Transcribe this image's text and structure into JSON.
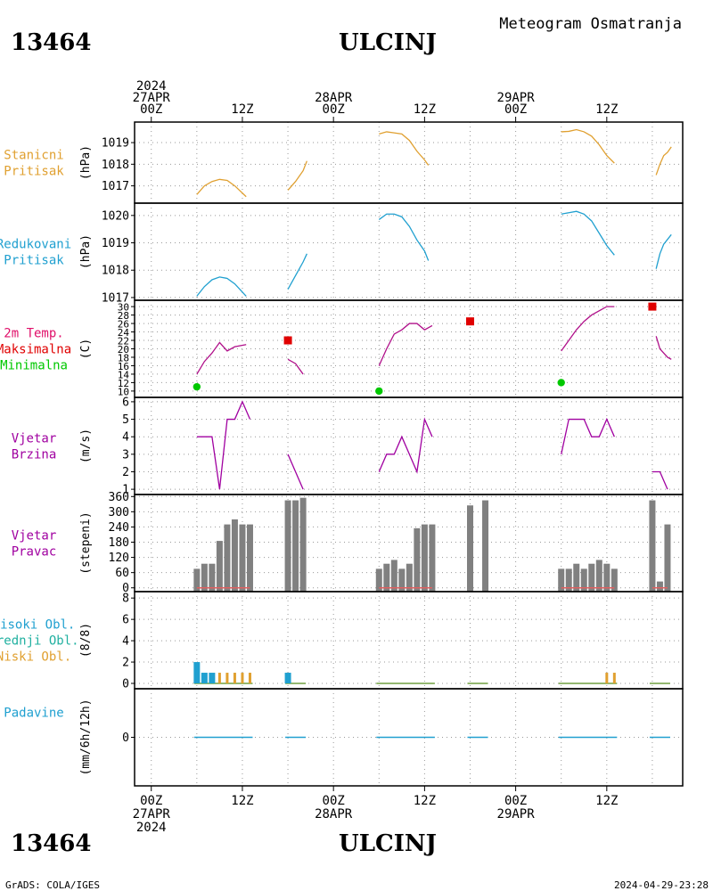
{
  "header": {
    "station_id": "13464",
    "station_name": "ULCINJ",
    "subtitle": "Meteogram Osmatranja"
  },
  "footer": {
    "station_id": "13464",
    "station_name": "ULCINJ",
    "credit": "GrADS: COLA/IGES",
    "timestamp": "2024-04-29-23:28"
  },
  "time_axis": {
    "top": [
      {
        "t": 0,
        "lines": [
          "2024",
          "27APR",
          "00Z"
        ]
      },
      {
        "t": 12,
        "lines": [
          "12Z"
        ]
      },
      {
        "t": 24,
        "lines": [
          "28APR",
          "00Z"
        ]
      },
      {
        "t": 36,
        "lines": [
          "12Z"
        ]
      },
      {
        "t": 48,
        "lines": [
          "29APR",
          "00Z"
        ]
      },
      {
        "t": 60,
        "lines": [
          "12Z"
        ]
      }
    ],
    "bottom": [
      {
        "t": 0,
        "lines": [
          "00Z",
          "27APR",
          "2024"
        ]
      },
      {
        "t": 12,
        "lines": [
          "12Z"
        ]
      },
      {
        "t": 24,
        "lines": [
          "00Z",
          "28APR"
        ]
      },
      {
        "t": 36,
        "lines": [
          "12Z"
        ]
      },
      {
        "t": 48,
        "lines": [
          "00Z",
          "29APR"
        ]
      },
      {
        "t": 60,
        "lines": [
          "12Z"
        ]
      }
    ]
  },
  "colors": {
    "stanicni": "#e0a030",
    "redukovani": "#20a0d0",
    "temp_label": "#e0106a",
    "maks": "#e00000",
    "mini": "#00c800",
    "vjetar": "#a000a0",
    "bars": "#808080",
    "visoki": "#20a0d0",
    "srednji": "#20b0a0",
    "niski": "#e0a030",
    "padavine": "#20a0d0"
  },
  "chart_data": [
    {
      "type": "line",
      "panel": "stanicni",
      "label_lines": [
        "Stanicni",
        "Pritisak"
      ],
      "unit": "(hPa)",
      "yticks": [
        1017,
        1018,
        1019
      ],
      "ylim": [
        1016.2,
        1019.95
      ],
      "series": [
        {
          "segments": [
            [
              [
                6,
                1016.6
              ],
              [
                7,
                1017.0
              ],
              [
                8,
                1017.2
              ],
              [
                9,
                1017.3
              ],
              [
                10,
                1017.25
              ],
              [
                11,
                1017.0
              ],
              [
                12.5,
                1016.5
              ]
            ],
            [
              [
                18,
                1016.8
              ],
              [
                19,
                1017.2
              ],
              [
                20,
                1017.7
              ],
              [
                20.5,
                1018.15
              ]
            ],
            [
              [
                30,
                1019.4
              ],
              [
                31,
                1019.5
              ],
              [
                32,
                1019.45
              ],
              [
                33,
                1019.4
              ],
              [
                34,
                1019.1
              ],
              [
                35,
                1018.6
              ],
              [
                36,
                1018.2
              ],
              [
                36.5,
                1017.95
              ]
            ],
            [
              [
                54,
                1019.5
              ],
              [
                55,
                1019.52
              ],
              [
                56,
                1019.6
              ],
              [
                57,
                1019.5
              ],
              [
                58,
                1019.3
              ],
              [
                59,
                1018.9
              ],
              [
                60,
                1018.4
              ],
              [
                61,
                1018.05
              ]
            ],
            [
              [
                66.5,
                1017.5
              ],
              [
                67,
                1018.0
              ],
              [
                67.5,
                1018.4
              ],
              [
                68,
                1018.55
              ],
              [
                68.5,
                1018.8
              ]
            ]
          ]
        }
      ]
    },
    {
      "type": "line",
      "panel": "redukovani",
      "label_lines": [
        "Redukovani",
        "Pritisak"
      ],
      "unit": "(hPa)",
      "yticks": [
        1017,
        1018,
        1019,
        1020
      ],
      "ylim": [
        1016.9,
        1020.45
      ],
      "series": [
        {
          "segments": [
            [
              [
                6,
                1017.05
              ],
              [
                7,
                1017.4
              ],
              [
                8,
                1017.65
              ],
              [
                9,
                1017.75
              ],
              [
                10,
                1017.7
              ],
              [
                11,
                1017.5
              ],
              [
                12.5,
                1017.05
              ]
            ],
            [
              [
                18,
                1017.3
              ],
              [
                19,
                1017.8
              ],
              [
                20,
                1018.3
              ],
              [
                20.5,
                1018.6
              ]
            ],
            [
              [
                30,
                1019.85
              ],
              [
                31,
                1020.05
              ],
              [
                32,
                1020.05
              ],
              [
                33,
                1019.95
              ],
              [
                34,
                1019.6
              ],
              [
                35,
                1019.1
              ],
              [
                36,
                1018.7
              ],
              [
                36.5,
                1018.35
              ]
            ],
            [
              [
                54,
                1020.05
              ],
              [
                55,
                1020.1
              ],
              [
                56,
                1020.15
              ],
              [
                57,
                1020.05
              ],
              [
                58,
                1019.8
              ],
              [
                59,
                1019.35
              ],
              [
                60,
                1018.9
              ],
              [
                61,
                1018.55
              ]
            ],
            [
              [
                66.5,
                1018.05
              ],
              [
                67,
                1018.6
              ],
              [
                67.5,
                1018.95
              ],
              [
                68.5,
                1019.3
              ]
            ]
          ]
        }
      ]
    },
    {
      "type": "line",
      "panel": "temperatura",
      "label_lines": [
        "2m Temp.",
        "Maksimalna",
        "Minimalna"
      ],
      "unit": "(C)",
      "yticks": [
        10,
        12,
        14,
        16,
        18,
        20,
        22,
        24,
        26,
        28,
        30
      ],
      "ylim": [
        8.5,
        31.5
      ],
      "series": [
        {
          "name": "2m Temp.",
          "segments": [
            [
              [
                6,
                14
              ],
              [
                7,
                17
              ],
              [
                8,
                19
              ],
              [
                9,
                21.5
              ],
              [
                10,
                19.5
              ],
              [
                11,
                20.5
              ],
              [
                12.5,
                21
              ]
            ],
            [
              [
                18,
                17.5
              ],
              [
                19,
                16.5
              ],
              [
                20,
                14
              ]
            ],
            [
              [
                30,
                16
              ],
              [
                31,
                20
              ],
              [
                32,
                23.5
              ],
              [
                33,
                24.5
              ],
              [
                34,
                26
              ],
              [
                35,
                26
              ],
              [
                36,
                24.5
              ],
              [
                37,
                25.5
              ]
            ],
            [
              [
                54,
                19.5
              ],
              [
                55,
                22
              ],
              [
                56,
                24.5
              ],
              [
                57,
                26.5
              ],
              [
                58,
                28
              ],
              [
                59,
                29
              ],
              [
                60,
                30
              ],
              [
                61,
                30
              ]
            ],
            [
              [
                66.5,
                23
              ],
              [
                67,
                20
              ],
              [
                68,
                18
              ],
              [
                68.5,
                17.5
              ]
            ]
          ]
        },
        {
          "name": "Maksimalna",
          "points": [
            [
              18,
              22
            ],
            [
              42,
              26.5
            ],
            [
              66,
              30
            ]
          ]
        },
        {
          "name": "Minimalna",
          "points": [
            [
              6,
              11
            ],
            [
              30,
              10
            ],
            [
              54,
              12
            ]
          ]
        }
      ]
    },
    {
      "type": "line",
      "panel": "vjetar_brzina",
      "label_lines": [
        "Vjetar",
        "Brzina"
      ],
      "unit": "(m/s)",
      "yticks": [
        1,
        2,
        3,
        4,
        5,
        6
      ],
      "ylim": [
        0.7,
        6.25
      ],
      "series": [
        {
          "segments": [
            [
              [
                6,
                4
              ],
              [
                8,
                4
              ],
              [
                9,
                1
              ],
              [
                10,
                5
              ],
              [
                11,
                5
              ],
              [
                12,
                6
              ],
              [
                13,
                5
              ]
            ],
            [
              [
                18,
                3
              ],
              [
                20,
                1
              ]
            ],
            [
              [
                30,
                2
              ],
              [
                31,
                3
              ],
              [
                32,
                3
              ],
              [
                33,
                4
              ],
              [
                35,
                2
              ],
              [
                36,
                5
              ],
              [
                37,
                4
              ]
            ],
            [
              [
                54,
                3
              ],
              [
                55,
                5
              ],
              [
                57,
                5
              ],
              [
                58,
                4
              ],
              [
                59,
                4
              ],
              [
                60,
                5
              ],
              [
                61,
                4
              ]
            ],
            [
              [
                66,
                2
              ],
              [
                67,
                2
              ],
              [
                68,
                1
              ]
            ]
          ]
        }
      ]
    },
    {
      "type": "bar",
      "panel": "vjetar_pravac",
      "label_lines": [
        "Vjetar",
        "Pravac"
      ],
      "unit": "(stepeni)",
      "yticks": [
        0,
        60,
        120,
        180,
        240,
        300,
        360
      ],
      "ylim": [
        -15,
        368
      ],
      "series": [
        {
          "points": [
            [
              6,
              75
            ],
            [
              7,
              95
            ],
            [
              8,
              95
            ],
            [
              9,
              185
            ],
            [
              10,
              250
            ],
            [
              11,
              270
            ],
            [
              12,
              250
            ],
            [
              13,
              250
            ],
            [
              18,
              345
            ],
            [
              19,
              345
            ],
            [
              20,
              355
            ],
            [
              30,
              75
            ],
            [
              31,
              95
            ],
            [
              32,
              110
            ],
            [
              33,
              75
            ],
            [
              34,
              95
            ],
            [
              35,
              235
            ],
            [
              36,
              250
            ],
            [
              37,
              250
            ],
            [
              42,
              325
            ],
            [
              44,
              345
            ],
            [
              54,
              75
            ],
            [
              55,
              75
            ],
            [
              56,
              95
            ],
            [
              57,
              75
            ],
            [
              58,
              95
            ],
            [
              59,
              110
            ],
            [
              60,
              95
            ],
            [
              61,
              75
            ],
            [
              66,
              345
            ],
            [
              67,
              25
            ],
            [
              68,
              250
            ]
          ]
        }
      ]
    },
    {
      "type": "bar",
      "panel": "oblaci",
      "label_lines": [
        "Visoki Obl.",
        "Srednji Obl.",
        "Niski Obl."
      ],
      "unit": "(8/8)",
      "yticks": [
        0,
        2,
        4,
        6,
        8
      ],
      "ylim": [
        -0.5,
        8.6
      ],
      "series": [
        {
          "name": "Visoki Obl.",
          "points": [
            [
              6,
              2
            ],
            [
              7,
              1
            ],
            [
              8,
              1
            ],
            [
              18,
              1
            ]
          ]
        },
        {
          "name": "Niski Obl.",
          "points": [
            [
              9,
              1
            ],
            [
              10,
              1
            ],
            [
              11,
              1
            ],
            [
              12,
              1
            ],
            [
              13,
              1
            ],
            [
              60,
              1
            ],
            [
              61,
              1
            ]
          ]
        }
      ]
    },
    {
      "type": "bar",
      "panel": "padavine",
      "label_lines": [
        "Padavine"
      ],
      "unit": "(mm/6h/12h)",
      "yticks": [
        0
      ],
      "ylim": [
        -5,
        5
      ],
      "series": [
        {
          "points": []
        }
      ]
    }
  ]
}
